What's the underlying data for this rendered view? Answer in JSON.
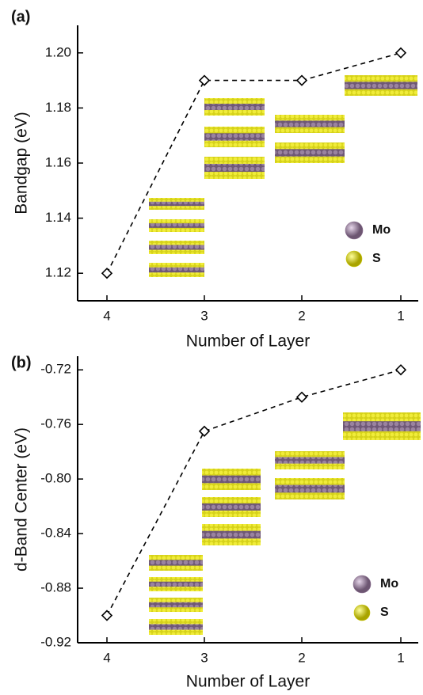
{
  "chart_data": [
    {
      "type": "line",
      "label": "(a)",
      "x_label": "Number of Layer",
      "y_label": "Bandgap (eV)",
      "categories": [
        "4",
        "3",
        "2",
        "1"
      ],
      "series": [
        {
          "color": "#000000",
          "line_style": "dashed",
          "marker": "diamond",
          "values": [
            1.12,
            1.19,
            1.19,
            1.2
          ]
        }
      ],
      "ylim": [
        1.11,
        1.21
      ],
      "yticks": [
        1.12,
        1.14,
        1.16,
        1.18,
        {
          "value": 1.2,
          "label": "1.20"
        }
      ],
      "legend_items": [
        {
          "name": "Mo",
          "color": "#8a6e8f"
        },
        {
          "name": "S",
          "color": "#c9c500"
        }
      ]
    },
    {
      "type": "line",
      "label": "(b)",
      "x_label": "Number of Layer",
      "y_label": "d-Band Center (eV)",
      "categories": [
        "4",
        "3",
        "2",
        "1"
      ],
      "series": [
        {
          "color": "#000000",
          "line_style": "dashed",
          "marker": "diamond",
          "values": [
            -0.9,
            -0.765,
            -0.74,
            -0.72
          ]
        }
      ],
      "ylim": [
        -0.92,
        -0.71
      ],
      "yticks": [
        -0.92,
        -0.88,
        -0.84,
        {
          "value": -0.8,
          "label": "-0.80"
        },
        -0.76,
        -0.72
      ],
      "legend_items": [
        {
          "name": "Mo",
          "color": "#8a6e8f"
        },
        {
          "name": "S",
          "color": "#c9c500"
        }
      ]
    }
  ]
}
